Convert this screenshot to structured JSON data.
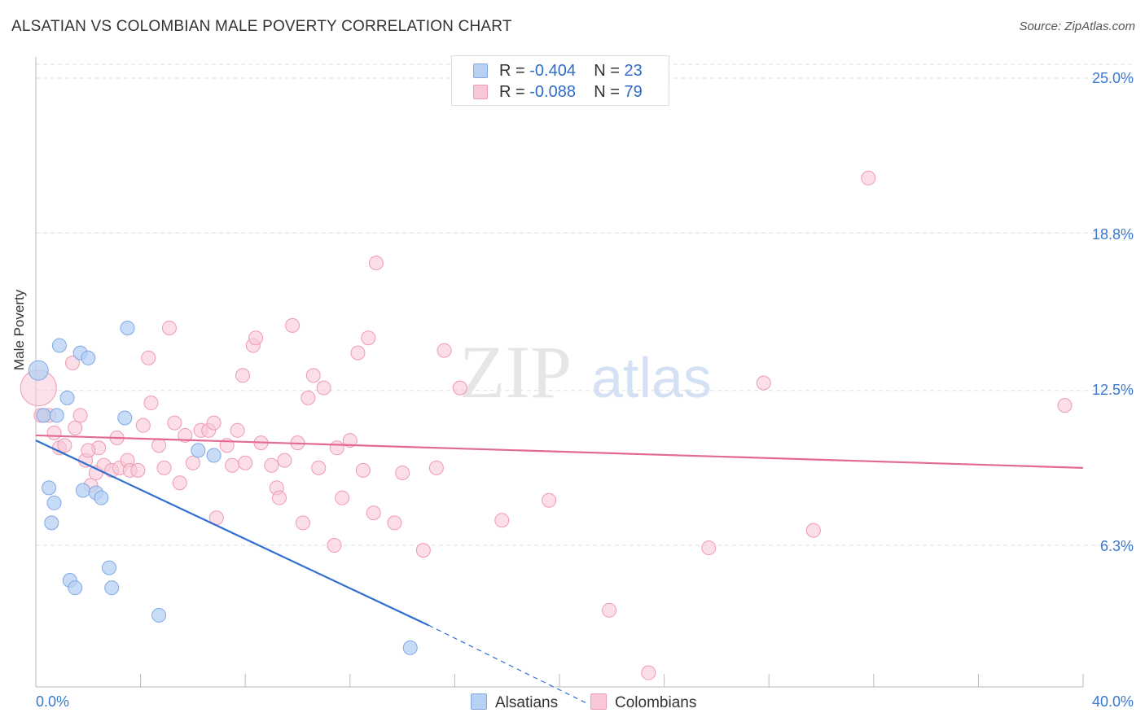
{
  "title": "ALSATIAN VS COLOMBIAN MALE POVERTY CORRELATION CHART",
  "source": "Source: ZipAtlas.com",
  "watermark": {
    "zip": "ZIP",
    "atlas": "atlas"
  },
  "legend": {
    "r_label": "R =",
    "n_label": "N =",
    "rows": [
      {
        "name": "Alsatians",
        "r": "-0.404",
        "n": "23"
      },
      {
        "name": "Colombians",
        "r": "-0.088",
        "n": "79"
      }
    ]
  },
  "colors": {
    "alsatian_fill": "#b7d0f4",
    "alsatian_stroke": "#7fa8e4",
    "alsatian_line": "#2f6fd0",
    "colombian_fill": "#f8c8d6",
    "colombian_stroke": "#ef9ab4",
    "colombian_line": "#e36a95",
    "tick_text": "#3a78d0",
    "grid": "#dddddd"
  },
  "chart_data": {
    "type": "scatter",
    "title": "ALSATIAN VS COLOMBIAN MALE POVERTY CORRELATION CHART",
    "xlabel": "",
    "ylabel": "Male Poverty",
    "x_tick_labels": [
      "0.0%",
      "40.0%"
    ],
    "y_tick_labels": [
      "25.0%",
      "18.8%",
      "12.5%",
      "6.3%"
    ],
    "y_ticks": [
      25.0,
      18.8,
      12.5,
      6.3
    ],
    "xlim": [
      0,
      40
    ],
    "ylim": [
      0,
      25.6
    ],
    "grid": true,
    "legend_position": "top-center",
    "series": [
      {
        "name": "Alsatians",
        "points": [
          [
            0.1,
            13.3
          ],
          [
            0.3,
            11.5
          ],
          [
            0.5,
            8.6
          ],
          [
            0.6,
            7.2
          ],
          [
            0.7,
            8.0
          ],
          [
            0.8,
            11.5
          ],
          [
            0.9,
            14.3
          ],
          [
            1.2,
            12.2
          ],
          [
            1.3,
            4.9
          ],
          [
            1.5,
            4.6
          ],
          [
            1.7,
            14.0
          ],
          [
            1.8,
            8.5
          ],
          [
            2.0,
            13.8
          ],
          [
            2.3,
            8.4
          ],
          [
            2.5,
            8.2
          ],
          [
            2.8,
            5.4
          ],
          [
            2.9,
            4.6
          ],
          [
            3.4,
            11.4
          ],
          [
            3.5,
            15.0
          ],
          [
            4.7,
            3.5
          ],
          [
            6.2,
            10.1
          ],
          [
            6.8,
            9.9
          ],
          [
            14.3,
            2.2
          ]
        ],
        "trend": {
          "x": [
            0,
            15.0
          ],
          "y": [
            10.5,
            3.1
          ],
          "dashed_extension": {
            "x": [
              15.0,
              21.0
            ],
            "y": [
              3.1,
              0.0
            ]
          }
        }
      },
      {
        "name": "Colombians",
        "points": [
          [
            0.1,
            12.6
          ],
          [
            0.3,
            11.5
          ],
          [
            0.5,
            11.5
          ],
          [
            0.7,
            10.8
          ],
          [
            0.9,
            10.2
          ],
          [
            1.1,
            10.3
          ],
          [
            1.4,
            13.6
          ],
          [
            1.5,
            11.0
          ],
          [
            1.7,
            11.5
          ],
          [
            1.9,
            9.7
          ],
          [
            2.1,
            8.7
          ],
          [
            2.3,
            9.2
          ],
          [
            2.4,
            10.2
          ],
          [
            2.6,
            9.5
          ],
          [
            2.9,
            9.3
          ],
          [
            3.1,
            10.6
          ],
          [
            3.2,
            9.4
          ],
          [
            3.5,
            9.7
          ],
          [
            3.6,
            9.3
          ],
          [
            3.9,
            9.3
          ],
          [
            4.1,
            11.1
          ],
          [
            4.3,
            13.8
          ],
          [
            4.4,
            12.0
          ],
          [
            4.7,
            10.3
          ],
          [
            4.9,
            9.4
          ],
          [
            5.1,
            15.0
          ],
          [
            5.3,
            11.2
          ],
          [
            5.5,
            8.8
          ],
          [
            5.7,
            10.7
          ],
          [
            6.0,
            9.6
          ],
          [
            6.3,
            10.9
          ],
          [
            6.6,
            10.9
          ],
          [
            6.8,
            11.2
          ],
          [
            6.9,
            7.4
          ],
          [
            7.3,
            10.3
          ],
          [
            7.5,
            9.5
          ],
          [
            7.7,
            10.9
          ],
          [
            7.9,
            13.1
          ],
          [
            8.0,
            9.6
          ],
          [
            8.3,
            14.3
          ],
          [
            8.4,
            14.6
          ],
          [
            8.6,
            10.4
          ],
          [
            9.0,
            9.5
          ],
          [
            9.2,
            8.6
          ],
          [
            9.3,
            8.2
          ],
          [
            9.5,
            9.7
          ],
          [
            9.8,
            15.1
          ],
          [
            10.0,
            10.4
          ],
          [
            10.2,
            7.2
          ],
          [
            10.4,
            12.2
          ],
          [
            10.6,
            13.1
          ],
          [
            10.8,
            9.4
          ],
          [
            11.0,
            12.6
          ],
          [
            11.4,
            6.3
          ],
          [
            11.5,
            10.2
          ],
          [
            11.7,
            8.2
          ],
          [
            12.0,
            10.5
          ],
          [
            12.3,
            14.0
          ],
          [
            12.5,
            9.3
          ],
          [
            12.7,
            14.6
          ],
          [
            12.9,
            7.6
          ],
          [
            13.0,
            17.6
          ],
          [
            13.7,
            7.2
          ],
          [
            14.0,
            9.2
          ],
          [
            14.8,
            6.1
          ],
          [
            15.3,
            9.4
          ],
          [
            15.6,
            14.1
          ],
          [
            16.2,
            12.6
          ],
          [
            17.8,
            7.3
          ],
          [
            19.6,
            8.1
          ],
          [
            21.9,
            3.7
          ],
          [
            23.4,
            1.2
          ],
          [
            25.7,
            6.2
          ],
          [
            27.8,
            12.8
          ],
          [
            29.7,
            6.9
          ],
          [
            31.8,
            21.0
          ],
          [
            39.3,
            11.9
          ],
          [
            0.2,
            11.5
          ],
          [
            2.0,
            10.1
          ]
        ],
        "trend": {
          "x": [
            0,
            40.0
          ],
          "y": [
            10.7,
            9.4
          ]
        }
      }
    ]
  }
}
